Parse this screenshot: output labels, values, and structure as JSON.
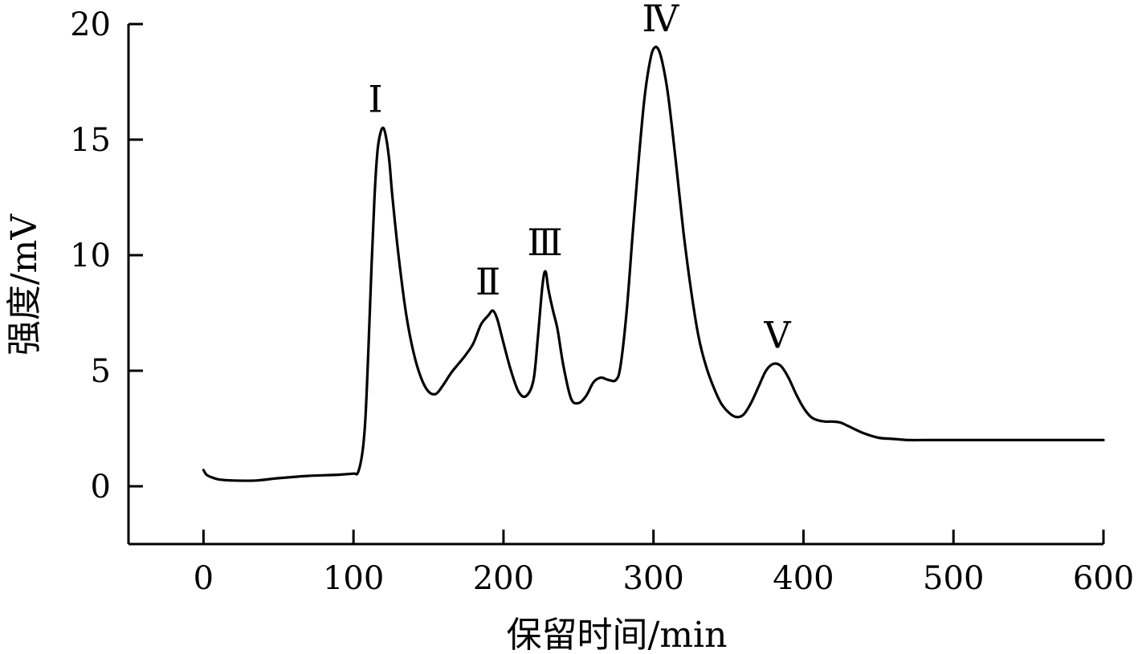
{
  "chart_data": {
    "type": "line",
    "xlabel": "保留时间/min",
    "ylabel": "强度/mV",
    "xlim": [
      -50,
      600
    ],
    "ylim": [
      -2.5,
      20
    ],
    "xticks": [
      0,
      100,
      200,
      300,
      400,
      500,
      600
    ],
    "yticks": [
      0,
      5,
      10,
      15,
      20
    ],
    "xtick_labels": [
      "0",
      "100",
      "200",
      "300",
      "400",
      "500",
      "600"
    ],
    "ytick_labels": [
      "0",
      "5",
      "10",
      "15",
      "20"
    ],
    "grid": false,
    "series": [
      {
        "x": [
          0,
          2,
          5,
          10,
          20,
          35,
          50,
          70,
          90,
          100,
          103,
          106,
          108,
          110,
          112,
          114,
          116,
          118,
          120,
          122,
          124,
          126,
          130,
          135,
          140,
          145,
          150,
          155,
          160,
          165,
          170,
          175,
          180,
          185,
          190,
          193,
          196,
          200,
          205,
          210,
          215,
          220,
          223,
          226,
          228,
          230,
          233,
          236,
          240,
          245,
          250,
          255,
          260,
          265,
          270,
          275,
          278,
          282,
          286,
          290,
          294,
          298,
          301,
          304,
          307,
          310,
          315,
          320,
          325,
          330,
          335,
          340,
          345,
          350,
          355,
          360,
          365,
          370,
          375,
          380,
          385,
          390,
          395,
          400,
          405,
          410,
          415,
          420,
          425,
          430,
          440,
          450,
          460,
          470,
          480,
          500,
          550,
          600
        ],
        "y": [
          0.7,
          0.5,
          0.4,
          0.3,
          0.25,
          0.25,
          0.35,
          0.45,
          0.5,
          0.55,
          0.6,
          1.5,
          3.0,
          6.0,
          9.5,
          12.5,
          14.5,
          15.3,
          15.5,
          15.0,
          14.0,
          12.5,
          10.0,
          7.5,
          5.8,
          4.7,
          4.1,
          4.0,
          4.4,
          4.9,
          5.3,
          5.7,
          6.2,
          7.0,
          7.4,
          7.6,
          7.2,
          6.2,
          5.0,
          4.1,
          3.9,
          4.6,
          6.5,
          8.7,
          9.3,
          8.5,
          7.6,
          6.8,
          5.2,
          3.8,
          3.6,
          3.9,
          4.5,
          4.7,
          4.6,
          4.6,
          5.2,
          7.5,
          10.8,
          14.0,
          16.8,
          18.5,
          19.0,
          18.8,
          18.0,
          16.8,
          14.0,
          11.0,
          8.5,
          6.5,
          5.2,
          4.3,
          3.6,
          3.2,
          3.0,
          3.1,
          3.6,
          4.3,
          5.0,
          5.3,
          5.2,
          4.7,
          4.0,
          3.4,
          3.0,
          2.85,
          2.8,
          2.8,
          2.75,
          2.6,
          2.3,
          2.1,
          2.05,
          2.0,
          2.0,
          2.0,
          2.0,
          2.0
        ]
      }
    ],
    "annotations": [
      {
        "text": "Ⅰ",
        "x": 120,
        "y": 15.5
      },
      {
        "text": "Ⅱ",
        "x": 195,
        "y": 7.6
      },
      {
        "text": "Ⅲ",
        "x": 233,
        "y": 9.3
      },
      {
        "text": "Ⅳ",
        "x": 310,
        "y": 19.0
      },
      {
        "text": "Ⅴ",
        "x": 388,
        "y": 5.3
      }
    ]
  }
}
